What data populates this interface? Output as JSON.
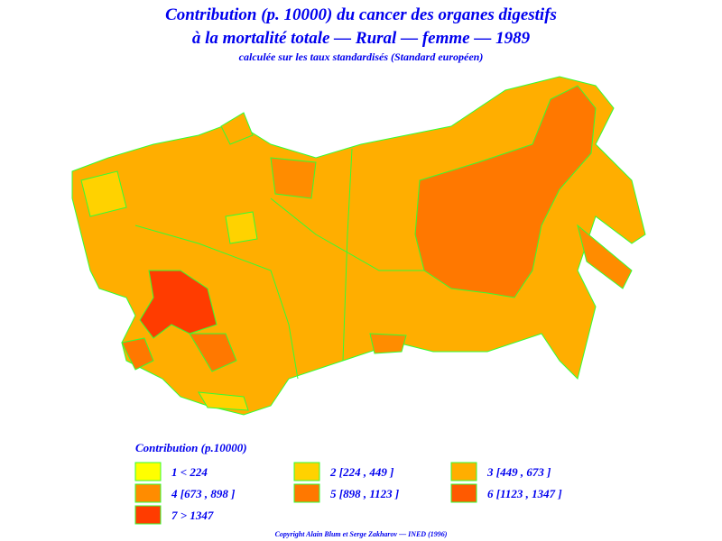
{
  "header": {
    "title_line1": "Contribution (p. 10000) du cancer des organes digestifs",
    "title_line2": "à la mortalité totale — Rural — femme — 1989",
    "subtitle": "calculée sur les taux standardisés (Standard européen)"
  },
  "legend": {
    "title": "Contribution (p.10000)",
    "items": [
      {
        "label": "1 < 224",
        "color": "#ffff00"
      },
      {
        "label": "2 [224 , 449 ]",
        "color": "#ffd200"
      },
      {
        "label": "3 [449 , 673 ]",
        "color": "#ffae00"
      },
      {
        "label": "4 [673 , 898 ]",
        "color": "#ff8c00"
      },
      {
        "label": "5 [898 , 1123 ]",
        "color": "#ff7800"
      },
      {
        "label": "6 [1123 , 1347 ]",
        "color": "#ff5a00"
      },
      {
        "label": "7 > 1347",
        "color": "#ff3c00"
      }
    ]
  },
  "footer": {
    "copyright": "Copyright Alain Blum et Serge Zakharov — INED (1996)"
  }
}
